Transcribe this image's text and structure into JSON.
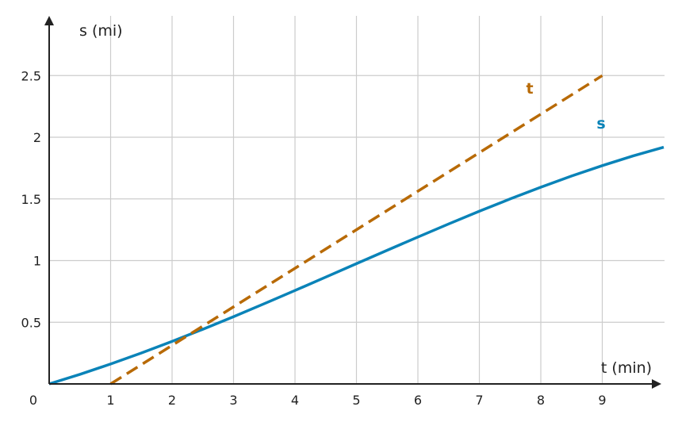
{
  "chart_data": {
    "type": "line",
    "xlabel": "t (min)",
    "ylabel": "s (mi)",
    "xlim": [
      0,
      10
    ],
    "ylim": [
      0,
      2.8
    ],
    "origin_label": "0",
    "x_ticks": [
      {
        "value": 1,
        "label": "1"
      },
      {
        "value": 2,
        "label": "2"
      },
      {
        "value": 3,
        "label": "3"
      },
      {
        "value": 4,
        "label": "4"
      },
      {
        "value": 5,
        "label": "5"
      },
      {
        "value": 6,
        "label": "6"
      },
      {
        "value": 7,
        "label": "7"
      },
      {
        "value": 8,
        "label": "8"
      },
      {
        "value": 9,
        "label": "9"
      }
    ],
    "y_ticks": [
      {
        "value": 0.5,
        "label": "0.5"
      },
      {
        "value": 1,
        "label": "1"
      },
      {
        "value": 1.5,
        "label": "1.5"
      },
      {
        "value": 2,
        "label": "2"
      },
      {
        "value": 2.5,
        "label": "2.5"
      }
    ],
    "grid": true,
    "series": [
      {
        "name": "s",
        "color": "#0a83b8",
        "style": "solid",
        "x": [
          0,
          0.5,
          1,
          1.5,
          2,
          2.5,
          3,
          3.5,
          4,
          4.5,
          5,
          5.5,
          6,
          6.5,
          7,
          7.5,
          8,
          8.5,
          9,
          9.5,
          10
        ],
        "y": [
          0,
          0.0775,
          0.1612,
          0.2505,
          0.3448,
          0.4434,
          0.5456,
          0.6506,
          0.7576,
          0.866,
          0.9749,
          1.0836,
          1.1911,
          1.2969,
          1.4,
          1.4996,
          1.595,
          1.6854,
          1.77,
          1.8482,
          1.9192
        ]
      },
      {
        "name": "t",
        "color": "#b86a06",
        "style": "dashed",
        "x": [
          1,
          9
        ],
        "y": [
          0,
          2.5
        ]
      }
    ]
  }
}
